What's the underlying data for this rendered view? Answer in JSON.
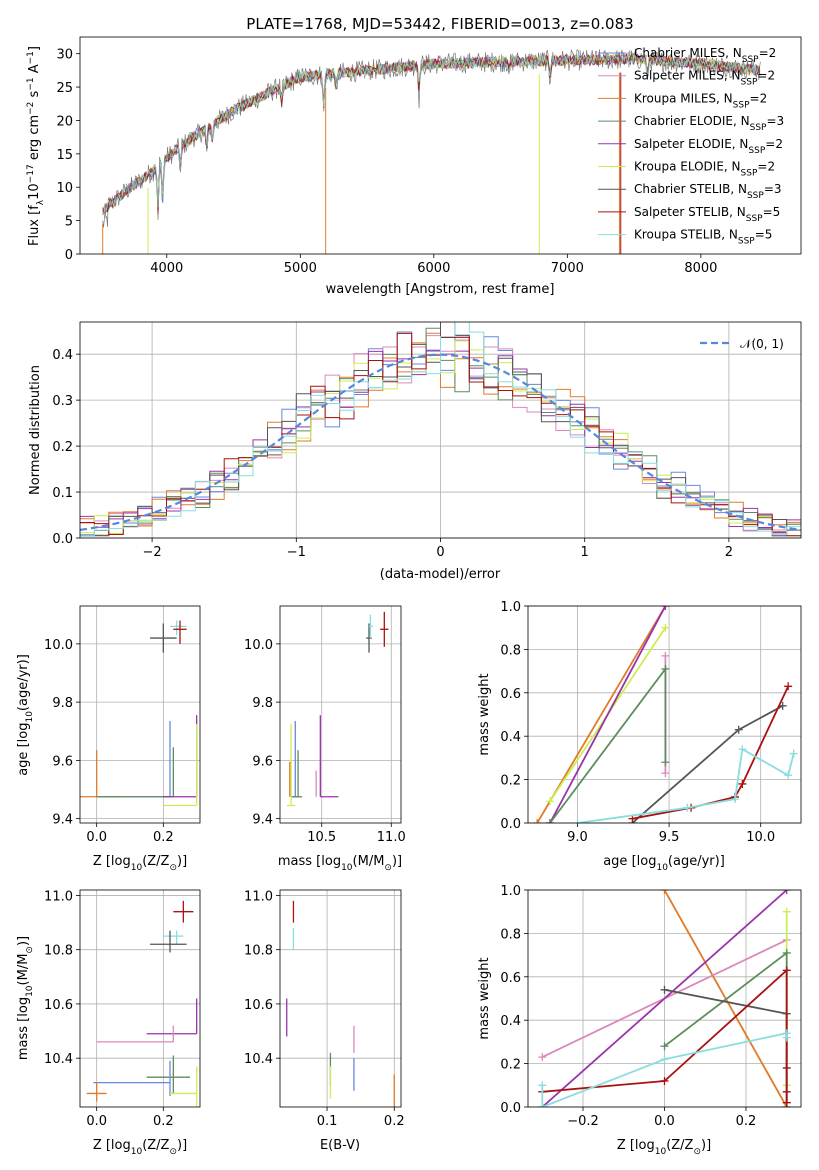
{
  "title": "PLATE=1768, MJD=53442, FIBERID=0013, z=0.083",
  "colors": {
    "Chabrier MILES": "#6688dd",
    "Salpeter MILES": "#dd88bb",
    "Kroupa MILES": "#e07b28",
    "Chabrier ELODIE": "#5e8c5e",
    "Salpeter ELODIE": "#9933aa",
    "Kroupa ELODIE": "#ccee55",
    "Chabrier STELIB": "#555555",
    "Salpeter STELIB": "#aa1111",
    "Kroupa STELIB": "#88dddd",
    "normal_fit": "#5588dd"
  },
  "chart_data": [
    {
      "id": "spectrum",
      "type": "line",
      "xlabel": "wavelength [Angstrom, rest frame]",
      "ylabel_main": "Flux [f",
      "ylabel_sub": "λ",
      "ylabel_rest": "10",
      "ylabel_exp": "−17",
      "ylabel_tail": " erg cm",
      "ylabel_exp2": "−2",
      "ylabel_tail2": " s",
      "ylabel_exp3": "−1",
      "ylabel_tail3": " A",
      "ylabel_exp4": "−1",
      "ylabel_end": "]",
      "xlim": [
        3350,
        8750
      ],
      "ylim": [
        0,
        32.5
      ],
      "xticks": [
        "4000",
        "5000",
        "6000",
        "7000",
        "8000"
      ],
      "xtick_values": [
        4000,
        5000,
        6000,
        7000,
        8000
      ],
      "yticks": [
        "0",
        "5",
        "10",
        "15",
        "20",
        "25",
        "30"
      ],
      "ytick_values": [
        0,
        5,
        10,
        15,
        20,
        25,
        30
      ],
      "continuum": [
        [
          3520,
          6.5
        ],
        [
          3700,
          9.5
        ],
        [
          3900,
          12.5
        ],
        [
          4000,
          14.5
        ],
        [
          4200,
          17.5
        ],
        [
          4500,
          21.5
        ],
        [
          5000,
          26.5
        ],
        [
          5500,
          27.5
        ],
        [
          6000,
          28.5
        ],
        [
          6500,
          28.8
        ],
        [
          7000,
          29.0
        ],
        [
          7500,
          29.2
        ],
        [
          8000,
          28.5
        ],
        [
          8450,
          27.5
        ]
      ],
      "legend": [
        {
          "label": "Chabrier MILES",
          "sub": "SSP",
          "n": "=2"
        },
        {
          "label": "Salpeter MILES",
          "sub": "SSP",
          "n": "=2"
        },
        {
          "label": "Kroupa MILES",
          "sub": "SSP",
          "n": "=2"
        },
        {
          "label": "Chabrier ELODIE",
          "sub": "SSP",
          "n": "=3"
        },
        {
          "label": "Salpeter ELODIE",
          "sub": "SSP",
          "n": "=2"
        },
        {
          "label": "Kroupa ELODIE",
          "sub": "SSP",
          "n": "=2"
        },
        {
          "label": "Chabrier STELIB",
          "sub": "SSP",
          "n": "=3"
        },
        {
          "label": "Salpeter STELIB",
          "sub": "SSP",
          "n": "=5"
        },
        {
          "label": "Kroupa STELIB",
          "sub": "SSP",
          "n": "=5"
        }
      ]
    },
    {
      "id": "residuals",
      "type": "histogram",
      "xlabel": "(data-model)/error",
      "ylabel": "Normed distribution",
      "xlim": [
        -2.5,
        2.5
      ],
      "ylim": [
        0,
        0.47
      ],
      "xticks": [
        "−2",
        "−1",
        "0",
        "1",
        "2"
      ],
      "xtick_values": [
        -2,
        -1,
        0,
        1,
        2
      ],
      "yticks": [
        "0.0",
        "0.1",
        "0.2",
        "0.3",
        "0.4"
      ],
      "ytick_values": [
        0,
        0.1,
        0.2,
        0.3,
        0.4
      ],
      "legend_label": "𝒩(0, 1)",
      "curve": "normal(0,1)"
    },
    {
      "id": "age_vs_Z",
      "type": "scatter_errorbar",
      "xlabel": "Z [log",
      "xlabel_sub": "10",
      "xlabel_tail": "(Z/Z",
      "xlabel_sun": "⊙",
      "xlabel_end": ")]",
      "ylabel": "age  [log",
      "ylabel_sub": "10",
      "ylabel_tail": "(age/yr)]",
      "xlim": [
        -0.05,
        0.31
      ],
      "ylim": [
        9.385,
        10.13
      ],
      "xticks": [
        "0.0",
        "0.2"
      ],
      "xtick_values": [
        0.0,
        0.2
      ],
      "yticks": [
        "9.4",
        "9.6",
        "9.8",
        "10.0"
      ],
      "ytick_values": [
        9.4,
        9.6,
        9.8,
        10.0
      ],
      "points": [
        {
          "model": "Chabrier STELIB",
          "x": 0.2,
          "y": 10.02,
          "xerr": [
            0.04,
            0.04
          ],
          "yerr": [
            0.05,
            0.05
          ]
        },
        {
          "model": "Kroupa STELIB",
          "x": 0.24,
          "y": 10.06,
          "xerr": [
            0.02,
            0.03
          ],
          "yerr": [
            0.03,
            0.02
          ]
        },
        {
          "model": "Salpeter STELIB",
          "x": 0.25,
          "y": 10.05,
          "xerr": [
            0.02,
            0.02
          ],
          "yerr": [
            0.05,
            0.03
          ]
        },
        {
          "model": "Kroupa MILES",
          "x": 0.0,
          "y": 9.475,
          "xerr": [
            0.05,
            0.07
          ],
          "yerr": [
            0,
            0.16
          ]
        },
        {
          "model": "Chabrier MILES",
          "x": 0.22,
          "y": 9.475,
          "xerr": [
            0.2,
            0.0
          ],
          "yerr": [
            0,
            0.26
          ]
        },
        {
          "model": "Chabrier ELODIE",
          "x": 0.23,
          "y": 9.475,
          "xerr": [
            0.23,
            0.0
          ],
          "yerr": [
            0,
            0.17
          ]
        },
        {
          "model": "Salpeter ELODIE",
          "x": 0.3,
          "y": 9.475,
          "xerr": [
            0.1,
            0.0
          ],
          "yerr": [
            0,
            0.28
          ]
        },
        {
          "model": "Kroupa ELODIE",
          "x": 0.3,
          "y": 9.445,
          "xerr": [
            0.1,
            0.0
          ],
          "yerr": [
            0,
            0.28
          ]
        }
      ]
    },
    {
      "id": "age_vs_mass",
      "type": "scatter_errorbar",
      "xlabel": "mass [log",
      "xlabel_sub": "10",
      "xlabel_tail": "(M/M",
      "xlabel_sun": "⊙",
      "xlabel_end": ")]",
      "xlim": [
        10.2,
        11.07
      ],
      "ylim": [
        9.385,
        10.13
      ],
      "xticks": [
        "10.5",
        "11.0"
      ],
      "xtick_values": [
        10.5,
        11.0
      ],
      "yticks": [
        "9.4",
        "9.6",
        "9.8",
        "10.0"
      ],
      "ytick_values": [
        9.4,
        9.6,
        9.8,
        10.0
      ],
      "points": [
        {
          "model": "Chabrier STELIB",
          "x": 10.84,
          "y": 10.02,
          "xerr": [
            0.02,
            0.02
          ],
          "yerr": [
            0.05,
            0.05
          ]
        },
        {
          "model": "Kroupa STELIB",
          "x": 10.85,
          "y": 10.06,
          "xerr": [
            0.01,
            0.02
          ],
          "yerr": [
            0.04,
            0.04
          ]
        },
        {
          "model": "Salpeter STELIB",
          "x": 10.95,
          "y": 10.05,
          "xerr": [
            0.03,
            0.03
          ],
          "yerr": [
            0.06,
            0.06
          ]
        },
        {
          "model": "Kroupa MILES",
          "x": 10.27,
          "y": 9.475,
          "xerr": [
            0,
            0
          ],
          "yerr": [
            0,
            0.12
          ]
        },
        {
          "model": "Chabrier MILES",
          "x": 10.31,
          "y": 9.475,
          "xerr": [
            0.02,
            0.02
          ],
          "yerr": [
            0,
            0.26
          ]
        },
        {
          "model": "Chabrier ELODIE",
          "x": 10.33,
          "y": 9.475,
          "xerr": [
            0.05,
            0.03
          ],
          "yerr": [
            0,
            0.16
          ]
        },
        {
          "model": "Salpeter ELODIE",
          "x": 10.49,
          "y": 9.475,
          "xerr": [
            0,
            0.13
          ],
          "yerr": [
            0,
            0.28
          ]
        },
        {
          "model": "Kroupa ELODIE",
          "x": 10.28,
          "y": 9.445,
          "xerr": [
            0.03,
            0.03
          ],
          "yerr": [
            0,
            0.28
          ]
        },
        {
          "model": "Salpeter MILES",
          "x": 10.46,
          "y": 9.475,
          "xerr": [
            0,
            0
          ],
          "yerr": [
            0,
            0.09
          ]
        }
      ]
    },
    {
      "id": "massweight_vs_age",
      "type": "line",
      "xlabel": "age  [log",
      "xlabel_sub": "10",
      "xlabel_tail": "(age/yr)]",
      "ylabel": "mass weight",
      "xlim": [
        8.73,
        10.22
      ],
      "ylim": [
        0,
        1.0
      ],
      "xticks": [
        "9.0",
        "9.5",
        "10.0"
      ],
      "xtick_values": [
        9.0,
        9.5,
        10.0
      ],
      "yticks": [
        "0.0",
        "0.2",
        "0.4",
        "0.6",
        "0.8",
        "1.0"
      ],
      "ytick_values": [
        0,
        0.2,
        0.4,
        0.6,
        0.8,
        1.0
      ],
      "series": [
        {
          "model": "Kroupa MILES",
          "x": [
            8.78,
            9.48
          ],
          "y": [
            0.0,
            1.0
          ]
        },
        {
          "model": "Salpeter MILES",
          "x": [
            9.48,
            9.48
          ],
          "y": [
            0.23,
            0.77
          ]
        },
        {
          "model": "Kroupa ELODIE",
          "x": [
            8.85,
            9.48
          ],
          "y": [
            0.1,
            0.9
          ]
        },
        {
          "model": "Salpeter ELODIE",
          "x": [
            8.85,
            9.48
          ],
          "y": [
            0.0,
            1.0
          ]
        },
        {
          "model": "Chabrier ELODIE",
          "x": [
            8.85,
            9.48,
            9.48
          ],
          "y": [
            0.0,
            0.71,
            0.28
          ]
        },
        {
          "model": "Chabrier STELIB",
          "x": [
            9.3,
            9.88,
            10.12
          ],
          "y": [
            0.0,
            0.43,
            0.54
          ]
        },
        {
          "model": "Salpeter STELIB",
          "x": [
            9.3,
            9.62,
            9.86,
            9.9,
            10.15
          ],
          "y": [
            0.02,
            0.07,
            0.12,
            0.18,
            0.63
          ]
        },
        {
          "model": "Kroupa STELIB",
          "x": [
            9.0,
            9.6,
            9.86,
            9.9,
            10.15,
            10.18
          ],
          "y": [
            0.0,
            0.07,
            0.11,
            0.34,
            0.22,
            0.32
          ]
        }
      ]
    },
    {
      "id": "mass_vs_Z",
      "type": "scatter_errorbar",
      "xlabel": "Z [log",
      "xlabel_sub": "10",
      "xlabel_tail": "(Z/Z",
      "xlabel_sun": "⊙",
      "xlabel_end": ")]",
      "ylabel": "mass [log",
      "ylabel_sub": "10",
      "ylabel_tail": "(M/M",
      "ylabel_sun": "⊙",
      "ylabel_end": ")]",
      "xlim": [
        -0.05,
        0.31
      ],
      "ylim": [
        10.22,
        11.02
      ],
      "xticks": [
        "0.0",
        "0.2"
      ],
      "xtick_values": [
        0.0,
        0.2
      ],
      "yticks": [
        "10.4",
        "10.6",
        "10.8",
        "11.0"
      ],
      "ytick_values": [
        10.4,
        10.6,
        10.8,
        11.0
      ],
      "points": [
        {
          "model": "Salpeter STELIB",
          "x": 0.26,
          "y": 10.94,
          "xerr": [
            0.03,
            0.03
          ],
          "yerr": [
            0.04,
            0.04
          ]
        },
        {
          "model": "Kroupa STELIB",
          "x": 0.24,
          "y": 10.85,
          "xerr": [
            0.04,
            0.02
          ],
          "yerr": [
            0.03,
            0.02
          ]
        },
        {
          "model": "Chabrier STELIB",
          "x": 0.22,
          "y": 10.82,
          "xerr": [
            0.06,
            0.05
          ],
          "yerr": [
            0.03,
            0.05
          ]
        },
        {
          "model": "Salpeter ELODIE",
          "x": 0.3,
          "y": 10.49,
          "xerr": [
            0.15,
            0.0
          ],
          "yerr": [
            0,
            0.13
          ]
        },
        {
          "model": "Salpeter MILES",
          "x": 0.23,
          "y": 10.46,
          "xerr": [
            0.23,
            0.0
          ],
          "yerr": [
            0,
            0.06
          ]
        },
        {
          "model": "Chabrier ELODIE",
          "x": 0.23,
          "y": 10.33,
          "xerr": [
            0.08,
            0.05
          ],
          "yerr": [
            0.06,
            0.08
          ]
        },
        {
          "model": "Chabrier MILES",
          "x": 0.22,
          "y": 10.31,
          "xerr": [
            0.23,
            0.0
          ],
          "yerr": [
            0.05,
            0.08
          ]
        },
        {
          "model": "Kroupa ELODIE",
          "x": 0.3,
          "y": 10.27,
          "xerr": [
            0.08,
            0.0
          ],
          "yerr": [
            0.05,
            0.1
          ]
        },
        {
          "model": "Kroupa MILES",
          "x": 0.0,
          "y": 10.27,
          "xerr": [
            0.03,
            0.03
          ],
          "yerr": [
            0.03,
            0.04
          ]
        }
      ]
    },
    {
      "id": "mass_vs_ebv",
      "type": "errorbar",
      "xlabel": "E(B-V)",
      "xlim": [
        0.03,
        0.21
      ],
      "ylim": [
        10.22,
        11.02
      ],
      "xticks": [
        "0.1",
        "0.2"
      ],
      "xtick_values": [
        0.1,
        0.2
      ],
      "yticks": [
        "10.4",
        "10.6",
        "10.8",
        "11.0"
      ],
      "ytick_values": [
        10.4,
        10.6,
        10.8,
        11.0
      ],
      "points": [
        {
          "model": "Salpeter STELIB",
          "x": 0.05,
          "y": 10.94,
          "yerr": [
            0.04,
            0.04
          ]
        },
        {
          "model": "Kroupa STELIB",
          "x": 0.05,
          "y": 10.84,
          "yerr": [
            0.04,
            0.04
          ]
        },
        {
          "model": "Salpeter ELODIE",
          "x": 0.04,
          "y": 10.55,
          "yerr": [
            0.07,
            0.07
          ]
        },
        {
          "model": "Salpeter MILES",
          "x": 0.14,
          "y": 10.47,
          "yerr": [
            0.05,
            0.05
          ]
        },
        {
          "model": "Chabrier ELODIE",
          "x": 0.105,
          "y": 10.36,
          "yerr": [
            0.06,
            0.06
          ]
        },
        {
          "model": "Chabrier MILES",
          "x": 0.14,
          "y": 10.34,
          "yerr": [
            0.06,
            0.06
          ]
        },
        {
          "model": "Kroupa ELODIE",
          "x": 0.105,
          "y": 10.31,
          "yerr": [
            0.06,
            0.06
          ]
        },
        {
          "model": "Kroupa MILES",
          "x": 0.2,
          "y": 10.27,
          "yerr": [
            0.07,
            0.07
          ]
        }
      ]
    },
    {
      "id": "massweight_vs_Z",
      "type": "line",
      "xlabel": "Z [log",
      "xlabel_sub": "10",
      "xlabel_tail": "(Z/Z",
      "xlabel_sun": "⊙",
      "xlabel_end": ")]",
      "ylabel": "mass weight",
      "xlim": [
        -0.335,
        0.335
      ],
      "ylim": [
        0,
        1.0
      ],
      "xticks": [
        "−0.2",
        "0.0",
        "0.2"
      ],
      "xtick_values": [
        -0.2,
        0.0,
        0.2
      ],
      "yticks": [
        "0.0",
        "0.2",
        "0.4",
        "0.6",
        "0.8",
        "1.0"
      ],
      "ytick_values": [
        0,
        0.2,
        0.4,
        0.6,
        0.8,
        1.0
      ],
      "series": [
        {
          "model": "Kroupa MILES",
          "x": [
            0.0,
            0.3
          ],
          "y": [
            1.0,
            0.0
          ]
        },
        {
          "model": "Salpeter MILES",
          "x": [
            -0.3,
            0.3
          ],
          "y": [
            0.23,
            0.77
          ]
        },
        {
          "model": "Salpeter ELODIE",
          "x": [
            -0.3,
            0.3
          ],
          "y": [
            0.0,
            1.0
          ]
        },
        {
          "model": "Kroupa ELODIE",
          "x": [
            0.3,
            0.3
          ],
          "y": [
            0.1,
            0.9
          ]
        },
        {
          "model": "Chabrier ELODIE",
          "x": [
            0.0,
            0.3,
            0.3
          ],
          "y": [
            0.28,
            0.71,
            0.0
          ]
        },
        {
          "model": "Chabrier STELIB",
          "x": [
            0.0,
            0.3,
            0.3
          ],
          "y": [
            0.54,
            0.43,
            0.02
          ]
        },
        {
          "model": "Salpeter STELIB",
          "x": [
            -0.3,
            0.0,
            0.3,
            0.3,
            0.3,
            0.3
          ],
          "y": [
            0.07,
            0.12,
            0.63,
            0.18,
            0.07,
            0.02
          ]
        },
        {
          "model": "Kroupa STELIB",
          "x": [
            -0.3,
            -0.3,
            0.0,
            0.3,
            0.3
          ],
          "y": [
            0.1,
            0.0,
            0.22,
            0.34,
            0.32
          ]
        }
      ]
    }
  ]
}
